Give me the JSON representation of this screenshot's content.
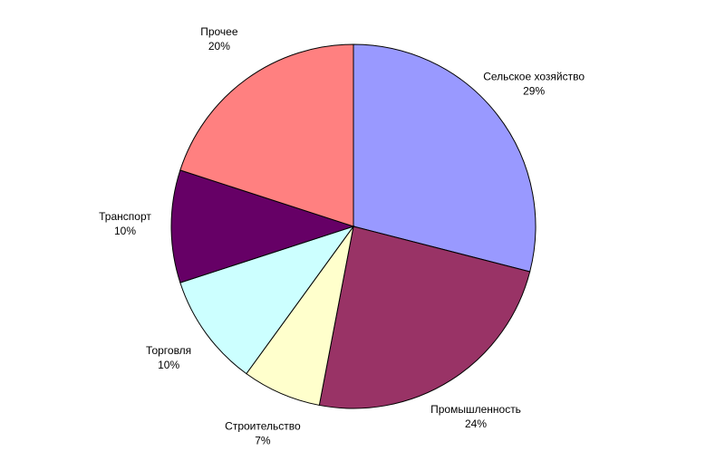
{
  "chart_data": {
    "type": "pie",
    "categories": [
      "Сельское хозяйство",
      "Промышленность",
      "Строительство",
      "Торговля",
      "Транспорт",
      "Прочее"
    ],
    "values": [
      29,
      24,
      7,
      10,
      10,
      20
    ],
    "value_labels": [
      "29%",
      "24%",
      "7%",
      "10%",
      "10%",
      "20%"
    ],
    "colors": [
      "#9999ff",
      "#993366",
      "#ffffcc",
      "#ccffff",
      "#660066",
      "#ff8080"
    ]
  }
}
